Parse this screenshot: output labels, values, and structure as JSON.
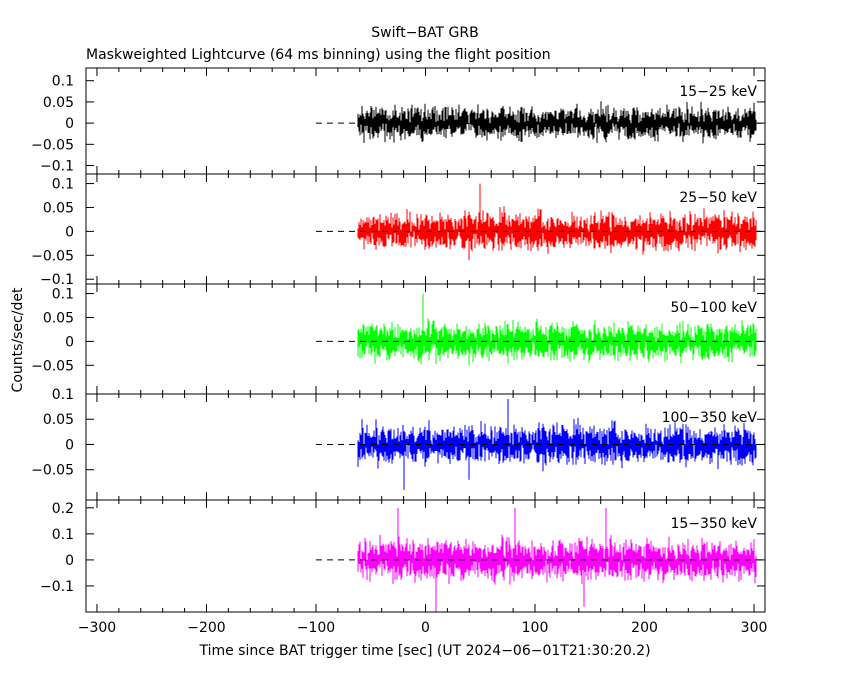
{
  "chart_data": {
    "type": "line",
    "title": "Swift−BAT GRB",
    "subtitle": "Maskweighted Lightcurve (64 ms binning) using the flight position",
    "xlabel": "Time since BAT trigger time [sec] (UT 2024−06−01T21:30:20.2)",
    "ylabel": "Counts/sec/det",
    "xlim": [
      -310,
      310
    ],
    "xticks": [
      -300,
      -200,
      -100,
      0,
      100,
      200,
      300
    ],
    "xtick_labels": [
      "−300",
      "−200",
      "−100",
      "0",
      "100",
      "200",
      "300"
    ],
    "data_x_range": [
      -62,
      302
    ],
    "bin_seconds": 0.064,
    "grid": false,
    "panels": [
      {
        "band": "15−25 keV",
        "color": "#000000",
        "ylim": [
          -0.12,
          0.13
        ],
        "yticks": [
          -0.1,
          -0.05,
          0,
          0.05,
          0.1
        ],
        "ytick_labels": [
          "−0.1",
          "−0.05",
          "0",
          "0.05",
          "0.1"
        ],
        "noise_sigma": 0.025,
        "spikes": []
      },
      {
        "band": "25−50 keV",
        "color": "#ff0000",
        "ylim": [
          -0.11,
          0.12
        ],
        "yticks": [
          -0.1,
          -0.05,
          0,
          0.05,
          0.1
        ],
        "ytick_labels": [
          "−0.1",
          "−0.05",
          "0",
          "0.05",
          "0.1"
        ],
        "noise_sigma": 0.025,
        "spikes": [
          [
            40,
            -0.06
          ],
          [
            50,
            0.1
          ]
        ]
      },
      {
        "band": "50−100 keV",
        "color": "#00ff00",
        "ylim": [
          -0.11,
          0.12
        ],
        "yticks": [
          -0.05,
          0,
          0.05,
          0.1
        ],
        "ytick_labels": [
          "−0.05",
          "0",
          "0.05",
          "0.1"
        ],
        "noise_sigma": 0.025,
        "spikes": [
          [
            40,
            -0.05
          ],
          [
            -2,
            0.1
          ]
        ]
      },
      {
        "band": "100−350 keV",
        "color": "#0000ff",
        "ylim": [
          -0.11,
          0.1
        ],
        "yticks": [
          -0.05,
          0,
          0.05,
          0.1
        ],
        "ytick_labels": [
          "−0.05",
          "0",
          "0.05",
          "0.1"
        ],
        "noise_sigma": 0.025,
        "spikes": [
          [
            40,
            -0.07
          ],
          [
            75,
            0.09
          ],
          [
            -20,
            -0.09
          ]
        ]
      },
      {
        "band": "15−350 keV",
        "color": "#ff00ff",
        "ylim": [
          -0.2,
          0.23
        ],
        "yticks": [
          -0.1,
          0,
          0.1,
          0.2
        ],
        "ytick_labels": [
          "−0.1",
          "0",
          "0.1",
          "0.2"
        ],
        "noise_sigma": 0.05,
        "spikes": [
          [
            10,
            -0.2
          ],
          [
            -25,
            0.2
          ],
          [
            82,
            0.2
          ],
          [
            165,
            0.2
          ],
          [
            145,
            -0.18
          ]
        ]
      }
    ]
  }
}
